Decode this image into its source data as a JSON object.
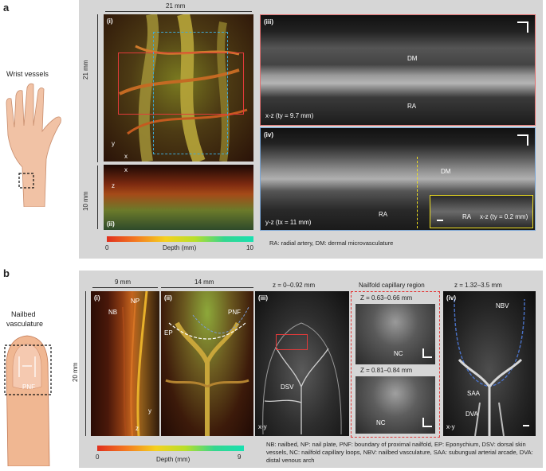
{
  "panel_a": {
    "letter": "a",
    "side_label": "Wrist vessels",
    "dim_top": "21 mm",
    "dim_left": "21 mm",
    "dim_left_ii": "10 mm",
    "sub_i": "(i)",
    "sub_ii": "(ii)",
    "sub_iii": "(iii)",
    "sub_iv": "(iv)",
    "axis_x": "x",
    "axis_y": "y",
    "axis_z": "z",
    "iii_caption": "x-z (ty = 9.7 mm)",
    "iii_dm": "DM",
    "iii_ra": "RA",
    "iv_caption": "y-z (tx = 11 mm)",
    "iv_dm": "DM",
    "iv_ra": "RA",
    "inset_ra": "RA",
    "inset_caption": "x-z (ty = 0.2 mm)",
    "colorbar_min": "0",
    "colorbar_max": "10",
    "colorbar_label": "Depth (mm)",
    "abbrev": "RA: radial artery, DM: dermal microvasculature"
  },
  "panel_b": {
    "letter": "b",
    "side_label_1": "Nailbed",
    "side_label_2": "vasculature",
    "finger_pnf": "PNF",
    "dim_i": "9 mm",
    "dim_ii": "14 mm",
    "dim_left": "20 mm",
    "sub_i": "(i)",
    "sub_ii": "(ii)",
    "sub_iii": "(iii)",
    "sub_iv": "(iv)",
    "i_np": "NP",
    "i_nb": "NB",
    "ii_pnf": "PNF",
    "ii_ep": "EP",
    "axis_y": "y",
    "axis_z": "z",
    "axis_x": "x",
    "iii_title": "z = 0–0.92 mm",
    "iii_dsv": "DSV",
    "iii_xy": "x-y",
    "nail_title": "Nailfold capillary region",
    "nail_z1": "Z = 0.63–0.66 mm",
    "nail_z2": "Z = 0.81–0.84 mm",
    "nail_nc1": "NC",
    "nail_nc2": "NC",
    "iv_title": "z = 1.32–3.5 mm",
    "iv_nbv": "NBV",
    "iv_saa": "SAA",
    "iv_dva": "DVA",
    "iv_xy": "x-y",
    "colorbar_min": "0",
    "colorbar_max": "9",
    "colorbar_label": "Depth (mm)",
    "abbrev": "NB: nailbed, NP: nail plate, PNF: boundary of proximal nailfold, EP: Eponychium, DSV: dorsal skin vessels, NC: nailfold capillary loops, NBV: nailbed vasculature, SAA: subungual arterial arcade, DVA: distal venous arch"
  }
}
